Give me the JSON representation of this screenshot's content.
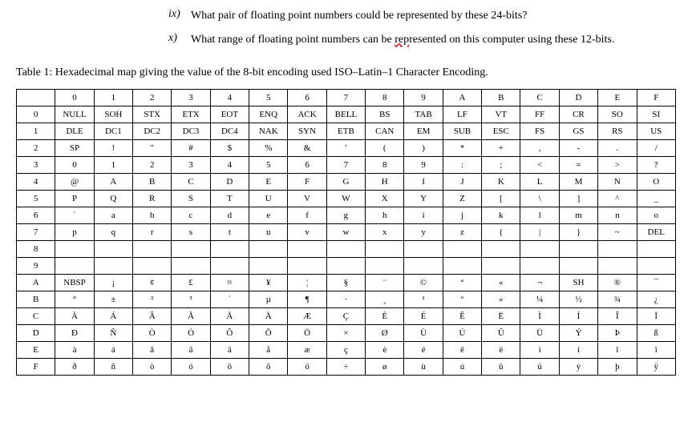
{
  "questions": [
    {
      "num": "ix)",
      "text_before": "What pair of floating point numbers could be represented by these 24-bits?",
      "squiggle": "",
      "text_after": ""
    },
    {
      "num": "x)",
      "text_before": "What range of floating point numbers can be ",
      "squiggle": "rep",
      "text_after": "resented on this computer using these 12-bits."
    }
  ],
  "caption": "Table 1: Hexadecimal map giving the value of the 8-bit encoding used ISO–Latin–1 Character Encoding.",
  "table": {
    "col_headers": [
      "",
      "0",
      "1",
      "2",
      "3",
      "4",
      "5",
      "6",
      "7",
      "8",
      "9",
      "A",
      "B",
      "C",
      "D",
      "E",
      "F"
    ],
    "rows": [
      {
        "h": "0",
        "c": [
          "NULL",
          "SOH",
          "STX",
          "ETX",
          "EOT",
          "ENQ",
          "ACK",
          "BELL",
          "BS",
          "TAB",
          "LF",
          "VT",
          "FF",
          "CR",
          "SO",
          "SI"
        ]
      },
      {
        "h": "1",
        "c": [
          "DLE",
          "DC1",
          "DC2",
          "DC3",
          "DC4",
          "NAK",
          "SYN",
          "ETB",
          "CAN",
          "EM",
          "SUB",
          "ESC",
          "FS",
          "GS",
          "RS",
          "US"
        ]
      },
      {
        "h": "2",
        "c": [
          "SP",
          "!",
          "\"",
          "#",
          "$",
          "%",
          "&",
          "'",
          "(",
          ")",
          "*",
          "+",
          ",",
          "-",
          ".",
          "/"
        ]
      },
      {
        "h": "3",
        "c": [
          "0",
          "1",
          "2",
          "3",
          "4",
          "5",
          "6",
          "7",
          "8",
          "9",
          ":",
          ";",
          "<",
          "=",
          ">",
          "?"
        ]
      },
      {
        "h": "4",
        "c": [
          "@",
          "A",
          "B",
          "C",
          "D",
          "E",
          "F",
          "G",
          "H",
          "I",
          "J",
          "K",
          "L",
          "M",
          "N",
          "O"
        ]
      },
      {
        "h": "5",
        "c": [
          "P",
          "Q",
          "R",
          "S",
          "T",
          "U",
          "V",
          "W",
          "X",
          "Y",
          "Z",
          "[",
          "\\",
          "]",
          "^",
          "_"
        ]
      },
      {
        "h": "6",
        "c": [
          "`",
          "a",
          "b",
          "c",
          "d",
          "e",
          "f",
          "g",
          "h",
          "i",
          "j",
          "k",
          "l",
          "m",
          "n",
          "o"
        ]
      },
      {
        "h": "7",
        "c": [
          "p",
          "q",
          "r",
          "s",
          "t",
          "u",
          "v",
          "w",
          "x",
          "y",
          "z",
          "{",
          "|",
          "}",
          "~",
          "DEL"
        ]
      },
      {
        "h": "8",
        "c": [
          "",
          "",
          "",
          "",
          "",
          "",
          "",
          "",
          "",
          "",
          "",
          "",
          "",
          "",
          "",
          ""
        ]
      },
      {
        "h": "9",
        "c": [
          "",
          "",
          "",
          "",
          "",
          "",
          "",
          "",
          "",
          "",
          "",
          "",
          "",
          "",
          "",
          ""
        ]
      },
      {
        "h": "A",
        "c": [
          "NBSP",
          "¡",
          "¢",
          "£",
          "¤",
          "¥",
          "¦",
          "§",
          "¨",
          "©",
          "ª",
          "«",
          "¬",
          "SH",
          "®",
          "¯"
        ]
      },
      {
        "h": "B",
        "c": [
          "°",
          "±",
          "²",
          "³",
          "´",
          "µ",
          "¶",
          "·",
          "¸",
          "¹",
          "º",
          "»",
          "¼",
          "½",
          "¾",
          "¿"
        ]
      },
      {
        "h": "C",
        "c": [
          "À",
          "Á",
          "Â",
          "Ã",
          "Ä",
          "Å",
          "Æ",
          "Ç",
          "È",
          "É",
          "Ê",
          "Ë",
          "Ì",
          "Í",
          "Î",
          "Ï"
        ]
      },
      {
        "h": "D",
        "c": [
          "Ð",
          "Ñ",
          "Ò",
          "Ó",
          "Ô",
          "Õ",
          "Ö",
          "×",
          "Ø",
          "Ù",
          "Ú",
          "Û",
          "Ü",
          "Ý",
          "Þ",
          "ß"
        ]
      },
      {
        "h": "E",
        "c": [
          "à",
          "á",
          "â",
          "ã",
          "ä",
          "å",
          "æ",
          "ç",
          "è",
          "é",
          "ê",
          "ë",
          "ì",
          "í",
          "î",
          "ï"
        ]
      },
      {
        "h": "F",
        "c": [
          "ð",
          "ñ",
          "ò",
          "ó",
          "ô",
          "õ",
          "ö",
          "÷",
          "ø",
          "ù",
          "ú",
          "û",
          "ü",
          "ý",
          "þ",
          "ÿ"
        ]
      }
    ]
  }
}
